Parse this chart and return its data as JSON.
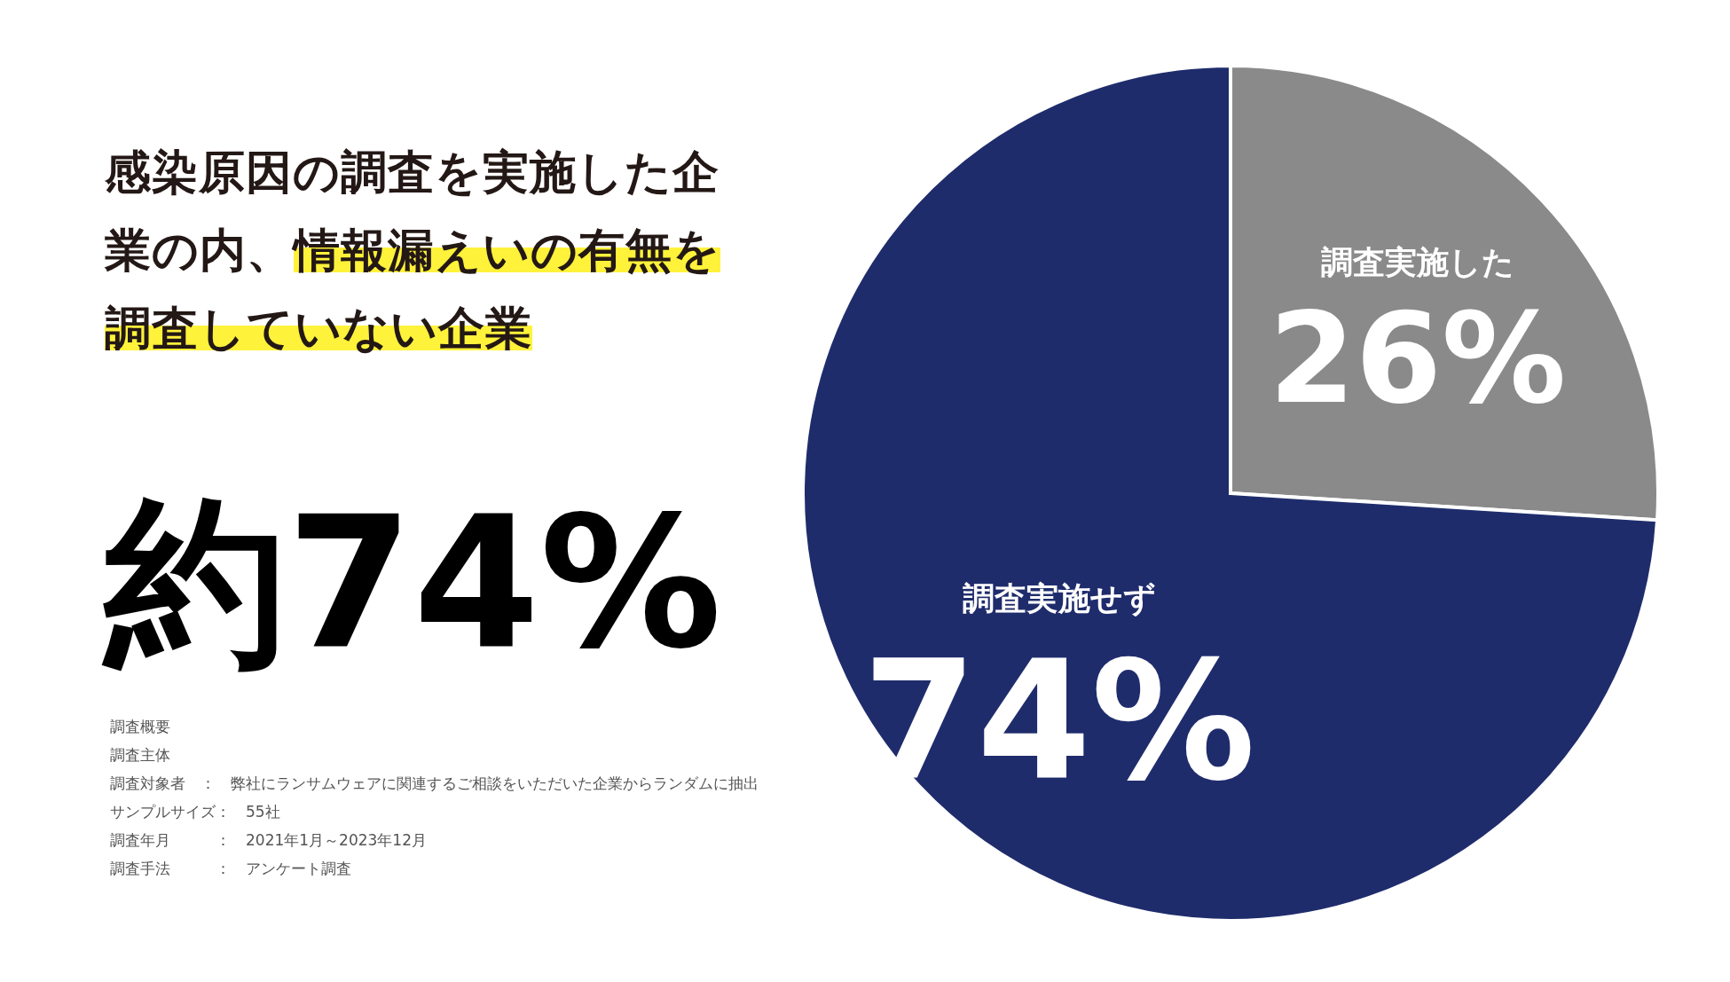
{
  "chart_data": {
    "type": "pie",
    "title": "感染原因の調査を実施した企業の内、",
    "subtitle": "情報漏えいの有無を調査していない企業",
    "categories": [
      "調査実施した",
      "調査実施せず"
    ],
    "values": [
      26,
      74
    ],
    "colors": [
      "#8a8a8a",
      "#1f2c6c"
    ],
    "value_labels": [
      "26%",
      "74%"
    ],
    "annotations": [
      "約74%",
      "調査概要",
      "調査主体",
      "調査対象者　：　弊社にランサムウェアに関連するご相談をいただいた企業からランダムに抽出",
      "サンプルサイズ：　55社",
      "調査年月　　　：　2021年1月～2023年12月",
      "調査手法　　　：　アンケート調査"
    ]
  }
}
